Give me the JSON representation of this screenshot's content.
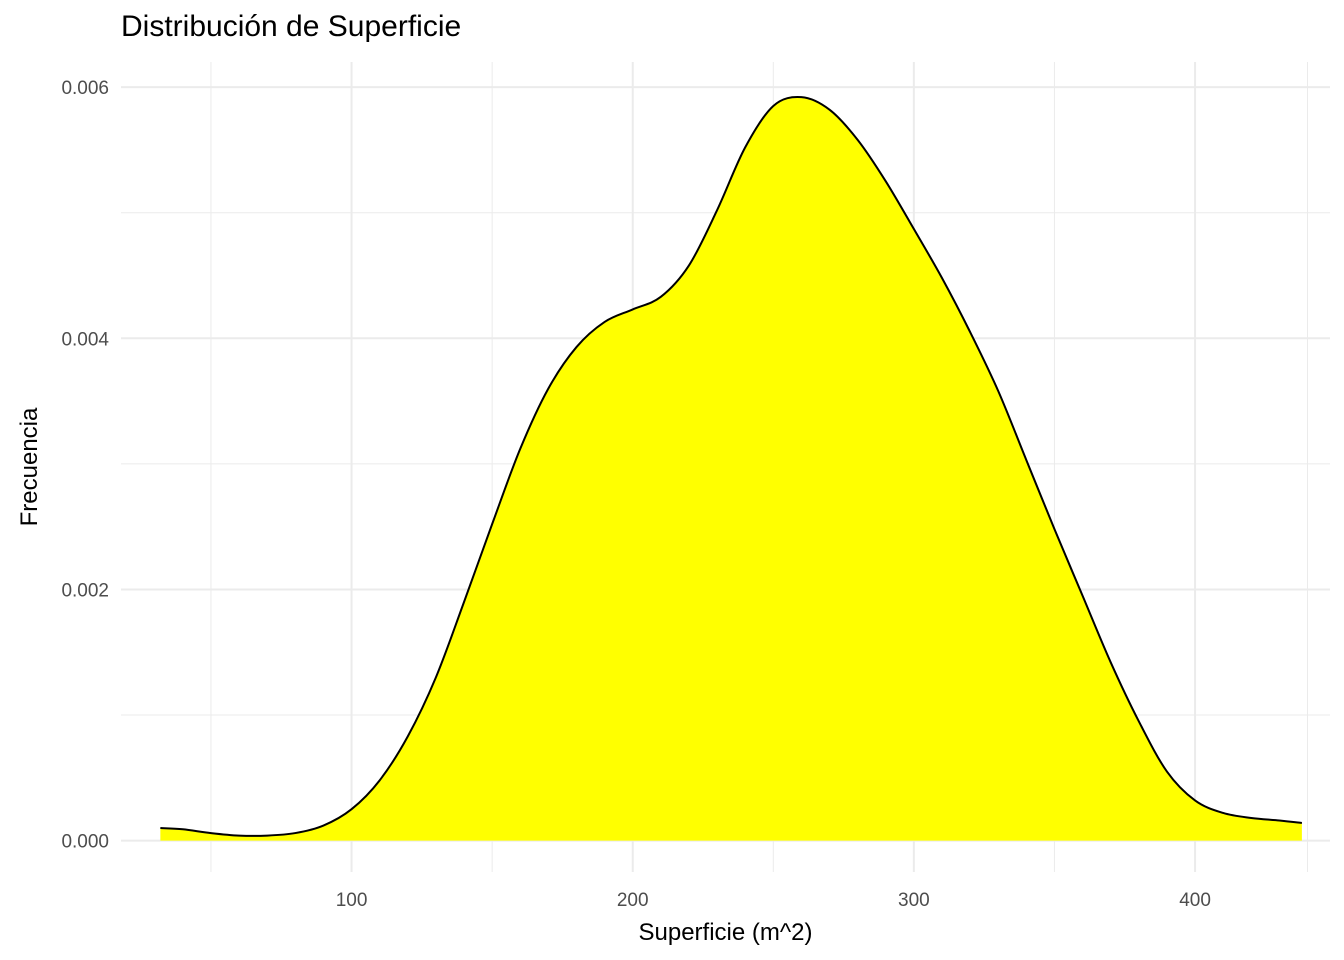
{
  "chart_data": {
    "type": "area",
    "title": "Distribución de Superficie",
    "xlabel": "Superficie (m^2)",
    "ylabel": "Frecuencia",
    "xlim": [
      18,
      448
    ],
    "ylim": [
      -0.00025,
      0.0062
    ],
    "x_ticks": [
      100,
      200,
      300,
      400
    ],
    "x_tick_labels": [
      "100",
      "200",
      "300",
      "400"
    ],
    "y_ticks": [
      0.0,
      0.002,
      0.004,
      0.006
    ],
    "y_tick_labels": [
      "0.000",
      "0.002",
      "0.004",
      "0.006"
    ],
    "x_minor_grid": [
      50,
      150,
      250,
      350,
      440
    ],
    "y_minor_grid": [
      0.001,
      0.003,
      0.005
    ],
    "grid": true,
    "legend": "none",
    "fill_color": "#FFFF00",
    "line_color": "#000000",
    "grid_color": "#EBEBEB",
    "series": [
      {
        "x": [
          32,
          40,
          50,
          60,
          70,
          80,
          90,
          100,
          110,
          120,
          130,
          140,
          150,
          160,
          170,
          180,
          190,
          200,
          210,
          220,
          230,
          240,
          250,
          260,
          270,
          280,
          290,
          300,
          310,
          320,
          330,
          340,
          350,
          360,
          370,
          380,
          390,
          400,
          410,
          420,
          430,
          438
        ],
        "y": [
          0.0001,
          9e-05,
          6e-05,
          4e-05,
          4e-05,
          6e-05,
          0.00012,
          0.00025,
          0.00048,
          0.00083,
          0.0013,
          0.0019,
          0.00252,
          0.00312,
          0.0036,
          0.00393,
          0.00413,
          0.00423,
          0.00433,
          0.00458,
          0.00502,
          0.00552,
          0.00585,
          0.00592,
          0.00582,
          0.00558,
          0.00525,
          0.00487,
          0.00448,
          0.00405,
          0.00358,
          0.00303,
          0.00248,
          0.00195,
          0.00142,
          0.00095,
          0.00055,
          0.00032,
          0.00022,
          0.00018,
          0.00016,
          0.00014
        ]
      }
    ]
  }
}
